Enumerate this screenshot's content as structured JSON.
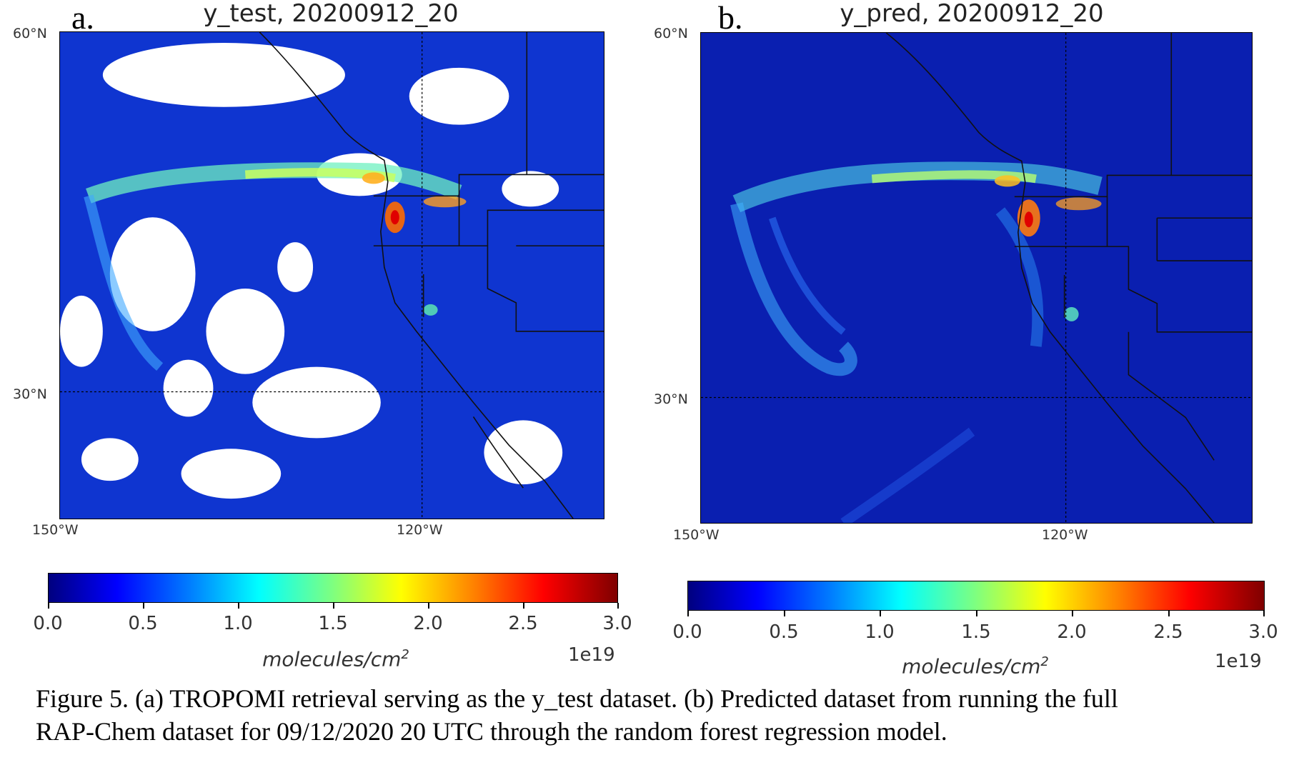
{
  "panels": [
    {
      "letter": "a.",
      "title": "y_test, 20200912_20",
      "lat_labels": [
        "60°N",
        "30°N"
      ],
      "lon_labels": [
        "150°W",
        "120°W"
      ],
      "colorbar": {
        "ticks": [
          "0.0",
          "0.5",
          "1.0",
          "1.5",
          "2.0",
          "2.5",
          "3.0"
        ],
        "multiplier": "1e19",
        "label": "molecules/cm",
        "label_exp": "2",
        "range": [
          0.0,
          3.0
        ],
        "colormap": "jet"
      }
    },
    {
      "letter": "b.",
      "title": "y_pred, 20200912_20",
      "lat_labels": [
        "60°N",
        "30°N"
      ],
      "lon_labels": [
        "150°W",
        "120°W"
      ],
      "colorbar": {
        "ticks": [
          "0.0",
          "0.5",
          "1.0",
          "1.5",
          "2.0",
          "2.5",
          "3.0"
        ],
        "multiplier": "1e19",
        "label": "molecules/cm",
        "label_exp": "2",
        "range": [
          0.0,
          3.0
        ],
        "colormap": "jet"
      }
    }
  ],
  "caption": {
    "line1": "Figure 5. (a) TROPOMI retrieval serving as the y_test dataset. (b) Predicted dataset from running the full",
    "line2": "RAP-Chem dataset for 09/12/2020 20 UTC through the random forest regression model."
  },
  "colors": {
    "background_ocean": "#1030c8",
    "deep_blue": "#000a8c",
    "jet_stops": [
      "#00007f",
      "#0000ff",
      "#007fff",
      "#00ffff",
      "#7fff7f",
      "#ffff00",
      "#ff7f00",
      "#ff0000",
      "#7f0000"
    ]
  }
}
